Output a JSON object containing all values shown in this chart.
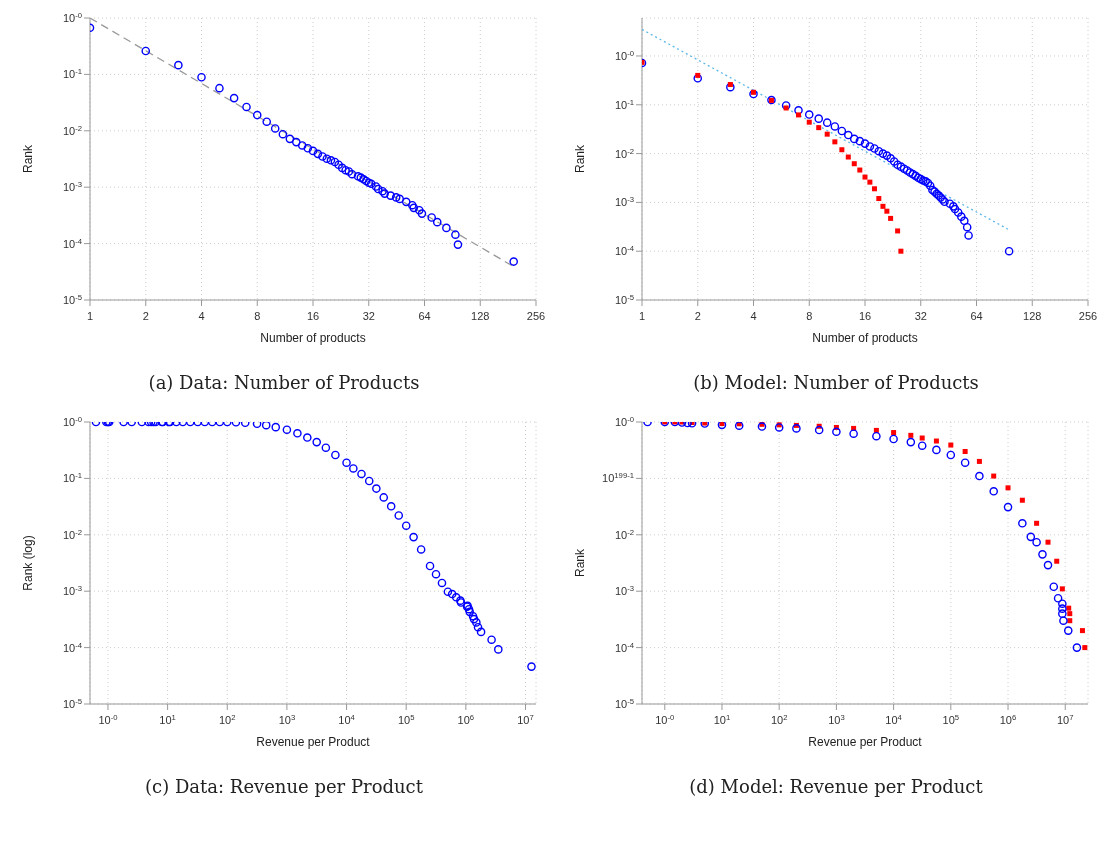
{
  "chart_data": [
    {
      "type": "scatter",
      "title": "(a) Data: Number of Products",
      "xlabel": "Number of products",
      "ylabel": "Rank",
      "log": "xy",
      "grid": true,
      "xlim": [
        1,
        256
      ],
      "xticks": [
        1,
        2,
        4,
        8,
        16,
        32,
        64,
        128,
        256
      ],
      "ylim": [
        1e-05,
        1
      ],
      "yticks": [
        {
          "value": 1,
          "label": "10$^{-0}$"
        },
        {
          "value": 0.1,
          "label": "10$^{-1}$"
        },
        {
          "value": 0.01,
          "label": "10$^{-2}$"
        },
        {
          "value": 0.001,
          "label": "10$^{-3}$"
        },
        {
          "value": 0.0001,
          "label": "10$^{-4}$"
        },
        {
          "value": 1e-05,
          "label": "10$^{-5}$"
        }
      ],
      "series": [
        {
          "type": "line",
          "color": "#999999",
          "line_style": "dashed",
          "marker": "none",
          "x": [
            1,
            194
          ],
          "values": [
            1,
            3.9e-05
          ]
        },
        {
          "type": "scatter",
          "color": "#0000ff",
          "marker": "circle",
          "x": [
            1,
            2,
            3,
            4,
            5,
            6,
            7,
            8,
            9,
            10,
            11,
            12,
            13,
            14,
            15,
            16,
            17,
            18,
            19,
            20,
            21,
            22,
            23,
            24,
            25,
            26,
            28,
            29,
            30,
            31,
            32,
            33,
            35,
            36,
            38,
            39,
            42,
            45,
            47,
            51,
            55,
            56,
            60,
            62,
            70,
            75,
            84,
            94,
            97,
            194
          ],
          "values": [
            0.67,
            0.26,
            0.146,
            0.089,
            0.057,
            0.038,
            0.0265,
            0.019,
            0.0145,
            0.011,
            0.0087,
            0.0072,
            0.0063,
            0.0055,
            0.0049,
            0.0044,
            0.0039,
            0.0035,
            0.0032,
            0.003,
            0.0028,
            0.0025,
            0.0022,
            0.002,
            0.0019,
            0.0017,
            0.00156,
            0.00148,
            0.00138,
            0.00129,
            0.0012,
            0.00115,
            0.00103,
            0.00093,
            0.00085,
            0.00077,
            0.00071,
            0.00066,
            0.00062,
            0.00055,
            0.00048,
            0.00043,
            0.00039,
            0.00034,
            0.00029,
            0.00024,
            0.00019,
            0.000144,
            9.6e-05,
            4.8e-05
          ]
        }
      ]
    },
    {
      "type": "scatter",
      "title": "(b) Model: Number of Products",
      "xlabel": "Number of products",
      "ylabel": "Rank",
      "log": "xy",
      "grid": true,
      "xlim": [
        1,
        256
      ],
      "xticks": [
        1,
        2,
        4,
        8,
        16,
        32,
        64,
        128,
        256
      ],
      "ylim": [
        1e-05,
        6
      ],
      "yticks": [
        {
          "value": 1,
          "label": "10$^{-0}$"
        },
        {
          "value": 0.1,
          "label": "10$^{-1}$"
        },
        {
          "value": 0.01,
          "label": "10$^{-2}$"
        },
        {
          "value": 0.001,
          "label": "10$^{-3}$"
        },
        {
          "value": 0.0001,
          "label": "10$^{-4}$"
        },
        {
          "value": 1e-05,
          "label": "10$^{-5}$"
        }
      ],
      "series": [
        {
          "type": "line",
          "color": "#5bb8e8",
          "line_style": "dotted",
          "marker": "none",
          "x": [
            1,
            95
          ],
          "values": [
            3.5,
            0.00028
          ]
        },
        {
          "type": "scatter",
          "color": "#0000ff",
          "marker": "circle",
          "x": [
            1,
            2,
            3,
            4,
            5,
            6,
            7,
            8,
            9,
            10,
            11,
            12,
            13,
            14,
            15,
            16,
            17,
            18,
            19,
            20,
            21,
            22,
            23,
            24,
            25,
            26,
            27,
            28,
            29,
            30,
            31,
            32,
            33,
            34,
            35,
            36,
            37,
            38,
            39,
            40,
            41,
            42,
            43,
            46,
            48,
            49,
            51,
            53,
            55,
            57,
            58,
            96
          ],
          "values": [
            0.72,
            0.35,
            0.23,
            0.166,
            0.125,
            0.097,
            0.077,
            0.063,
            0.052,
            0.043,
            0.036,
            0.029,
            0.024,
            0.02,
            0.018,
            0.016,
            0.014,
            0.0127,
            0.0112,
            0.01,
            0.0091,
            0.008,
            0.0069,
            0.0059,
            0.0054,
            0.0049,
            0.0045,
            0.0041,
            0.0038,
            0.0035,
            0.0032,
            0.003,
            0.0028,
            0.0027,
            0.0025,
            0.0022,
            0.0018,
            0.00166,
            0.0015,
            0.00138,
            0.00126,
            0.00115,
            0.00103,
            0.00094,
            0.00083,
            0.00073,
            0.00062,
            0.00051,
            0.00042,
            0.00031,
            0.00021,
            0.0001
          ]
        },
        {
          "type": "scatter",
          "color": "#ff0000",
          "marker": "square",
          "x": [
            1,
            2,
            3,
            4,
            5,
            6,
            7,
            8,
            9,
            10,
            11,
            12,
            13,
            14,
            15,
            16,
            17,
            18,
            19,
            20,
            21,
            22,
            24,
            25
          ],
          "values": [
            0.74,
            0.4,
            0.26,
            0.18,
            0.123,
            0.086,
            0.062,
            0.044,
            0.034,
            0.025,
            0.0174,
            0.012,
            0.0085,
            0.0062,
            0.0046,
            0.0033,
            0.0026,
            0.0019,
            0.0012,
            0.00083,
            0.00066,
            0.00047,
            0.00026,
            0.0001
          ]
        }
      ]
    },
    {
      "type": "scatter",
      "title": "(c) Data: Revenue per Product",
      "xlabel": "Revenue per Product",
      "ylabel": "Rank (log)",
      "log": "xy",
      "grid": true,
      "xlim": [
        0.5,
        15000000
      ],
      "xticks": [
        {
          "value": 1,
          "label": "10$^{-0}$"
        },
        {
          "value": 10,
          "label": "10$^{1}$"
        },
        {
          "value": 100,
          "label": "10$^{2}$"
        },
        {
          "value": 1000,
          "label": "10$^{3}$"
        },
        {
          "value": 10000,
          "label": "10$^{4}$"
        },
        {
          "value": 100000,
          "label": "10$^{5}$"
        },
        {
          "value": 1000000,
          "label": "10$^{6}$"
        },
        {
          "value": 10000000,
          "label": "10$^{7}$"
        }
      ],
      "ylim": [
        1e-05,
        1
      ],
      "yticks": [
        {
          "value": 1,
          "label": "10$^{-0}$"
        },
        {
          "value": 0.1,
          "label": "10$^{-1}$"
        },
        {
          "value": 0.01,
          "label": "10$^{-2}$"
        },
        {
          "value": 0.001,
          "label": "10$^{-3}$"
        },
        {
          "value": 0.0001,
          "label": "10$^{-4}$"
        },
        {
          "value": 1e-05,
          "label": "10$^{-5}$"
        }
      ],
      "series": [
        {
          "type": "scatter",
          "color": "#0000ff",
          "marker": "circle",
          "x": [
            0.63,
            0.94,
            1.0,
            1.05,
            1.83,
            2.5,
            3.7,
            4.8,
            5.3,
            5.8,
            6.3,
            8.0,
            8.3,
            10.5,
            11,
            14,
            18,
            24,
            32,
            42,
            56,
            75,
            100,
            140,
            200,
            316,
            450,
            650,
            1000,
            1500,
            2200,
            3160,
            4500,
            6500,
            10000,
            13000,
            17800,
            24000,
            31600,
            42000,
            56000,
            75000,
            100000,
            133000,
            178000,
            251000,
            316000,
            398000,
            500000,
            590000,
            690000,
            810000,
            830000,
            1050000,
            1070000,
            1130000,
            1160000,
            1320000,
            1370000,
            1500000,
            1600000,
            1800000,
            2700000,
            3500000,
            12600000
          ],
          "values": [
            1,
            1,
            1,
            1,
            1,
            1,
            1,
            1,
            1,
            1,
            1,
            1,
            1,
            1,
            1,
            1,
            1,
            1,
            1,
            1,
            1,
            1,
            1,
            0.99,
            0.97,
            0.93,
            0.88,
            0.81,
            0.73,
            0.63,
            0.53,
            0.44,
            0.35,
            0.26,
            0.19,
            0.15,
            0.12,
            0.09,
            0.066,
            0.046,
            0.032,
            0.022,
            0.0145,
            0.0091,
            0.0055,
            0.0028,
            0.002,
            0.0014,
            0.00098,
            0.00089,
            0.00078,
            0.00068,
            0.00063,
            0.00053,
            0.00055,
            0.00048,
            0.00043,
            0.00036,
            0.00032,
            0.00028,
            0.00023,
            0.00019,
            0.000138,
            9.3e-05,
            4.6e-05
          ]
        }
      ]
    },
    {
      "type": "scatter",
      "title": "(d) Model: Revenue per Product",
      "xlabel": "Revenue per Product",
      "ylabel": "Rank",
      "log": "xy",
      "grid": true,
      "xlim": [
        0.4,
        25000000
      ],
      "xticks": [
        {
          "value": 1,
          "label": "10$^{-0}$"
        },
        {
          "value": 10,
          "label": "10$^{1}$"
        },
        {
          "value": 100,
          "label": "10$^{2}$"
        },
        {
          "value": 1000,
          "label": "10$^{3}$"
        },
        {
          "value": 10000,
          "label": "10$^{4}$"
        },
        {
          "value": 100000,
          "label": "10$^{5}$"
        },
        {
          "value": 1000000,
          "label": "10$^{6}$"
        },
        {
          "value": 10000000,
          "label": "10$^{7}$"
        }
      ],
      "ylim": [
        1e-05,
        1
      ],
      "yticks": [
        {
          "value": 1,
          "label": "10$^{-0}$"
        },
        {
          "value": 0.1,
          "label": "10$^{199-1}$"
        },
        {
          "value": 0.01,
          "label": "10$^{-2}$"
        },
        {
          "value": 0.001,
          "label": "10$^{-3}$"
        },
        {
          "value": 0.0001,
          "label": "10$^{-4}$"
        },
        {
          "value": 1e-05,
          "label": "10$^{-5}$"
        }
      ],
      "series": [
        {
          "type": "scatter",
          "color": "#ff0000",
          "marker": "square",
          "x": [
            1,
            1.5,
            2,
            3,
            5,
            10,
            20,
            50,
            100,
            200,
            500,
            1000,
            2000,
            5000,
            10000,
            20000,
            31600,
            56000,
            100000,
            178000,
            316000,
            562000,
            1000000,
            1780000,
            3160000,
            5000000,
            7100000,
            8900000,
            11500000,
            12000000,
            12000000,
            20000000,
            22000000
          ],
          "values": [
            1,
            1,
            1,
            0.98,
            0.96,
            0.94,
            0.93,
            0.91,
            0.89,
            0.87,
            0.84,
            0.8,
            0.77,
            0.71,
            0.65,
            0.58,
            0.52,
            0.46,
            0.39,
            0.3,
            0.2,
            0.11,
            0.068,
            0.041,
            0.016,
            0.0074,
            0.0034,
            0.0011,
            0.0005,
            0.0004,
            0.0003,
            0.0002,
            0.0001
          ]
        },
        {
          "type": "scatter",
          "color": "#0000ff",
          "marker": "circle",
          "x": [
            0.5,
            1,
            1.5,
            2,
            2.5,
            3,
            5,
            10,
            20,
            50,
            100,
            200,
            500,
            1000,
            2000,
            5000,
            10000,
            20000,
            31600,
            56000,
            100000,
            178000,
            316000,
            562000,
            1000000,
            1780000,
            2500000,
            3160000,
            4000000,
            5000000,
            6300000,
            7500000,
            8900000,
            8900000,
            8900000,
            9300000,
            11300000,
            16000000
          ],
          "values": [
            1,
            1,
            1,
            0.98,
            0.96,
            0.95,
            0.94,
            0.89,
            0.86,
            0.83,
            0.8,
            0.77,
            0.72,
            0.67,
            0.62,
            0.56,
            0.5,
            0.44,
            0.38,
            0.32,
            0.26,
            0.19,
            0.11,
            0.059,
            0.031,
            0.016,
            0.0092,
            0.0074,
            0.0045,
            0.0029,
            0.0012,
            0.00075,
            0.0006,
            0.00049,
            0.0004,
            0.0003,
            0.0002,
            0.0001
          ]
        }
      ]
    }
  ]
}
